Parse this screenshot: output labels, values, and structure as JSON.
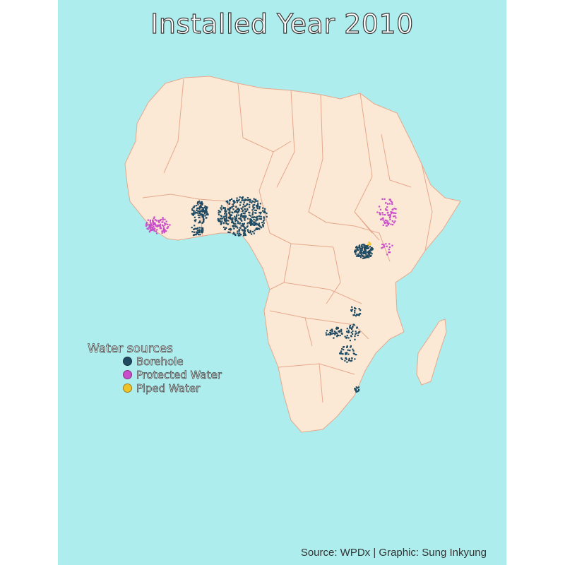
{
  "title": "Installed Year 2010",
  "caption": "Source: WPDx | Graphic: Sung Inkyung",
  "legend": {
    "title": "Water sources",
    "items": [
      {
        "label": "Borehole",
        "color": "#1f4a62"
      },
      {
        "label": "Protected Water",
        "color": "#c94cc9"
      },
      {
        "label": "Piped Water",
        "color": "#f0c22a"
      }
    ]
  },
  "colors": {
    "ocean": "#aeeded",
    "land": "#fbe9d6",
    "border": "#e6a88c"
  }
}
